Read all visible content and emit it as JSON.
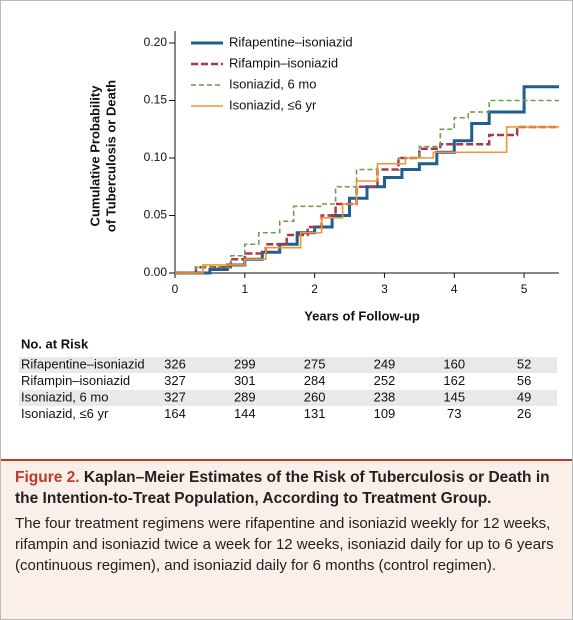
{
  "chart_data": {
    "type": "step",
    "xlabel": "Years of Follow-up",
    "ylabel": [
      "Cumulative Probability",
      "of Tuberculosis or Death"
    ],
    "xlim": [
      0,
      5.5
    ],
    "ylim": [
      0,
      0.2
    ],
    "xticks": [
      0,
      1,
      2,
      3,
      4,
      5
    ],
    "yticks": [
      {
        "value": 0,
        "label": "0.00"
      },
      {
        "value": 0.05,
        "label": "0.05"
      },
      {
        "value": 0.1,
        "label": "0.10"
      },
      {
        "value": 0.15,
        "label": "0.15"
      },
      {
        "value": 0.2,
        "label": "0.20"
      }
    ],
    "legend": "upper left",
    "series": [
      {
        "name": "Rifapentine–isoniazid",
        "color": "#1f5f8f",
        "dash": "none",
        "width": 3,
        "x": [
          0,
          0.5,
          0.75,
          1.0,
          1.25,
          1.5,
          1.75,
          2.0,
          2.25,
          2.5,
          2.75,
          3.0,
          3.25,
          3.5,
          3.75,
          4.0,
          4.25,
          4.5,
          5.0,
          5.5
        ],
        "values": [
          0,
          0.003,
          0.007,
          0.012,
          0.018,
          0.025,
          0.035,
          0.04,
          0.05,
          0.065,
          0.075,
          0.083,
          0.09,
          0.095,
          0.105,
          0.115,
          0.13,
          0.14,
          0.162,
          0.162
        ]
      },
      {
        "name": "Rifampin–isoniazid",
        "color": "#a83a4e",
        "dash": "7 3",
        "width": 2.5,
        "x": [
          0,
          0.3,
          0.8,
          1.0,
          1.3,
          1.6,
          1.9,
          2.1,
          2.3,
          2.6,
          2.9,
          3.2,
          3.5,
          3.8,
          4.5,
          4.9,
          5.5
        ],
        "values": [
          0,
          0.005,
          0.012,
          0.017,
          0.025,
          0.033,
          0.04,
          0.05,
          0.06,
          0.075,
          0.09,
          0.1,
          0.108,
          0.112,
          0.12,
          0.127,
          0.127
        ]
      },
      {
        "name": "Isoniazid, 6 mo",
        "color": "#6f9a4c",
        "dash": "5 3",
        "width": 1.6,
        "x": [
          0,
          0.3,
          0.8,
          1.0,
          1.2,
          1.5,
          1.7,
          2.1,
          2.3,
          2.6,
          2.9,
          3.2,
          3.5,
          3.8,
          4.0,
          4.2,
          4.5,
          5.5
        ],
        "values": [
          0,
          0.005,
          0.015,
          0.025,
          0.035,
          0.045,
          0.058,
          0.06,
          0.075,
          0.09,
          0.095,
          0.1,
          0.11,
          0.125,
          0.135,
          0.14,
          0.15,
          0.15
        ]
      },
      {
        "name": "Isoniazid, ≤6 yr",
        "color": "#f0952e",
        "dash": "none",
        "width": 1.6,
        "x": [
          0,
          0.4,
          1.0,
          1.3,
          1.8,
          2.1,
          2.4,
          2.6,
          2.9,
          3.3,
          3.7,
          4.75,
          5.5
        ],
        "values": [
          0,
          0.007,
          0.012,
          0.022,
          0.035,
          0.048,
          0.06,
          0.08,
          0.095,
          0.1,
          0.105,
          0.127,
          0.127
        ]
      }
    ]
  },
  "risk_table": {
    "title": "No. at Risk",
    "rows": [
      {
        "name": "Rifapentine–isoniazid",
        "values": [
          326,
          299,
          275,
          249,
          160,
          52
        ]
      },
      {
        "name": "Rifampin–isoniazid",
        "values": [
          327,
          301,
          284,
          252,
          162,
          56
        ]
      },
      {
        "name": "Isoniazid, 6 mo",
        "values": [
          327,
          289,
          260,
          238,
          145,
          49
        ]
      },
      {
        "name": "Isoniazid, ≤6 yr",
        "values": [
          164,
          144,
          131,
          109,
          73,
          26
        ]
      }
    ]
  },
  "caption": {
    "label": "Figure 2.",
    "title": "Kaplan–Meier Estimates of the Risk of Tuberculosis or Death in the Intention-to-Treat Population, According to Treatment Group.",
    "text": "The four treatment regimens were rifapentine and isoniazid weekly for 12 weeks, rifampin and isoniazid twice a week for 12 weeks, isoniazid daily for up to 6 years (continuous regimen), and isoniazid daily for 6 months (control regimen)."
  }
}
